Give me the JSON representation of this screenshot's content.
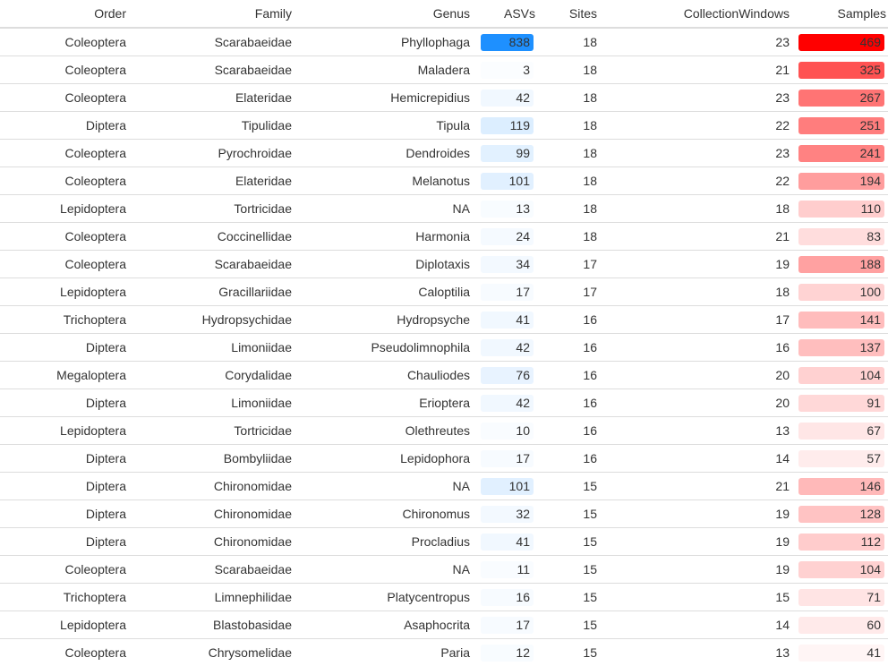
{
  "colors": {
    "asvs_max": "#1e90ff",
    "samples_max": "#ff0000",
    "text": "#333333",
    "border": "#dddddd"
  },
  "table": {
    "headers": {
      "order": "Order",
      "family": "Family",
      "genus": "Genus",
      "asvs": "ASVs",
      "sites": "Sites",
      "collection_windows": "CollectionWindows",
      "samples": "Samples"
    },
    "asvs_max": 838,
    "samples_max": 469,
    "rows": [
      {
        "order": "Coleoptera",
        "family": "Scarabaeidae",
        "genus": "Phyllophaga",
        "asvs": "838",
        "sites": "18",
        "collection_windows": "23",
        "samples": "469"
      },
      {
        "order": "Coleoptera",
        "family": "Scarabaeidae",
        "genus": "Maladera",
        "asvs": "3",
        "sites": "18",
        "collection_windows": "21",
        "samples": "325"
      },
      {
        "order": "Coleoptera",
        "family": "Elateridae",
        "genus": "Hemicrepidius",
        "asvs": "42",
        "sites": "18",
        "collection_windows": "23",
        "samples": "267"
      },
      {
        "order": "Diptera",
        "family": "Tipulidae",
        "genus": "Tipula",
        "asvs": "119",
        "sites": "18",
        "collection_windows": "22",
        "samples": "251"
      },
      {
        "order": "Coleoptera",
        "family": "Pyrochroidae",
        "genus": "Dendroides",
        "asvs": "99",
        "sites": "18",
        "collection_windows": "23",
        "samples": "241"
      },
      {
        "order": "Coleoptera",
        "family": "Elateridae",
        "genus": "Melanotus",
        "asvs": "101",
        "sites": "18",
        "collection_windows": "22",
        "samples": "194"
      },
      {
        "order": "Lepidoptera",
        "family": "Tortricidae",
        "genus": "NA",
        "asvs": "13",
        "sites": "18",
        "collection_windows": "18",
        "samples": "110"
      },
      {
        "order": "Coleoptera",
        "family": "Coccinellidae",
        "genus": "Harmonia",
        "asvs": "24",
        "sites": "18",
        "collection_windows": "21",
        "samples": "83"
      },
      {
        "order": "Coleoptera",
        "family": "Scarabaeidae",
        "genus": "Diplotaxis",
        "asvs": "34",
        "sites": "17",
        "collection_windows": "19",
        "samples": "188"
      },
      {
        "order": "Lepidoptera",
        "family": "Gracillariidae",
        "genus": "Caloptilia",
        "asvs": "17",
        "sites": "17",
        "collection_windows": "18",
        "samples": "100"
      },
      {
        "order": "Trichoptera",
        "family": "Hydropsychidae",
        "genus": "Hydropsyche",
        "asvs": "41",
        "sites": "16",
        "collection_windows": "17",
        "samples": "141"
      },
      {
        "order": "Diptera",
        "family": "Limoniidae",
        "genus": "Pseudolimnophila",
        "asvs": "42",
        "sites": "16",
        "collection_windows": "16",
        "samples": "137"
      },
      {
        "order": "Megaloptera",
        "family": "Corydalidae",
        "genus": "Chauliodes",
        "asvs": "76",
        "sites": "16",
        "collection_windows": "20",
        "samples": "104"
      },
      {
        "order": "Diptera",
        "family": "Limoniidae",
        "genus": "Erioptera",
        "asvs": "42",
        "sites": "16",
        "collection_windows": "20",
        "samples": "91"
      },
      {
        "order": "Lepidoptera",
        "family": "Tortricidae",
        "genus": "Olethreutes",
        "asvs": "10",
        "sites": "16",
        "collection_windows": "13",
        "samples": "67"
      },
      {
        "order": "Diptera",
        "family": "Bombyliidae",
        "genus": "Lepidophora",
        "asvs": "17",
        "sites": "16",
        "collection_windows": "14",
        "samples": "57"
      },
      {
        "order": "Diptera",
        "family": "Chironomidae",
        "genus": "NA",
        "asvs": "101",
        "sites": "15",
        "collection_windows": "21",
        "samples": "146"
      },
      {
        "order": "Diptera",
        "family": "Chironomidae",
        "genus": "Chironomus",
        "asvs": "32",
        "sites": "15",
        "collection_windows": "19",
        "samples": "128"
      },
      {
        "order": "Diptera",
        "family": "Chironomidae",
        "genus": "Procladius",
        "asvs": "41",
        "sites": "15",
        "collection_windows": "19",
        "samples": "112"
      },
      {
        "order": "Coleoptera",
        "family": "Scarabaeidae",
        "genus": "NA",
        "asvs": "11",
        "sites": "15",
        "collection_windows": "19",
        "samples": "104"
      },
      {
        "order": "Trichoptera",
        "family": "Limnephilidae",
        "genus": "Platycentropus",
        "asvs": "16",
        "sites": "15",
        "collection_windows": "15",
        "samples": "71"
      },
      {
        "order": "Lepidoptera",
        "family": "Blastobasidae",
        "genus": "Asaphocrita",
        "asvs": "17",
        "sites": "15",
        "collection_windows": "14",
        "samples": "60"
      },
      {
        "order": "Coleoptera",
        "family": "Chrysomelidae",
        "genus": "Paria",
        "asvs": "12",
        "sites": "15",
        "collection_windows": "13",
        "samples": "41"
      }
    ]
  }
}
